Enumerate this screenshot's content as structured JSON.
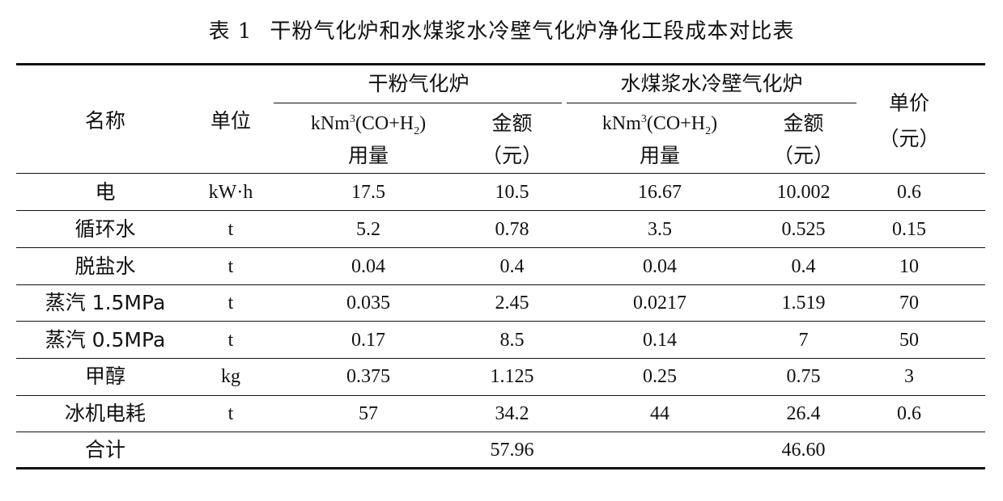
{
  "caption": {
    "number": "表 1",
    "title": "干粉气化炉和水煤浆水冷壁气化炉净化工段成本对比表"
  },
  "header": {
    "name": "名称",
    "unit": "单位",
    "group1": "干粉气化炉",
    "group2": "水煤浆水冷壁气化炉",
    "price_line1": "单价",
    "price_line2": "（元）",
    "usage_prefix": "kNm",
    "usage_sup": "3",
    "usage_mid": "(CO+H",
    "usage_sub": "2",
    "usage_suffix": ")",
    "usage_line2": "用量",
    "amount_line1": "金额",
    "amount_line2": "（元）"
  },
  "rows": [
    {
      "name": "电",
      "unit": "kW·h",
      "dry_usage": "17.5",
      "dry_amount": "10.5",
      "slurry_usage": "16.67",
      "slurry_amount": "10.002",
      "price": "0.6"
    },
    {
      "name": "循环水",
      "unit": "t",
      "dry_usage": "5.2",
      "dry_amount": "0.78",
      "slurry_usage": "3.5",
      "slurry_amount": "0.525",
      "price": "0.15"
    },
    {
      "name": "脱盐水",
      "unit": "t",
      "dry_usage": "0.04",
      "dry_amount": "0.4",
      "slurry_usage": "0.04",
      "slurry_amount": "0.4",
      "price": "10"
    },
    {
      "name": "蒸汽 1.5MPa",
      "unit": "t",
      "dry_usage": "0.035",
      "dry_amount": "2.45",
      "slurry_usage": "0.0217",
      "slurry_amount": "1.519",
      "price": "70"
    },
    {
      "name": "蒸汽 0.5MPa",
      "unit": "t",
      "dry_usage": "0.17",
      "dry_amount": "8.5",
      "slurry_usage": "0.14",
      "slurry_amount": "7",
      "price": "50"
    },
    {
      "name": "甲醇",
      "unit": "kg",
      "dry_usage": "0.375",
      "dry_amount": "1.125",
      "slurry_usage": "0.25",
      "slurry_amount": "0.75",
      "price": "3"
    },
    {
      "name": "冰机电耗",
      "unit": "t",
      "dry_usage": "57",
      "dry_amount": "34.2",
      "slurry_usage": "44",
      "slurry_amount": "26.4",
      "price": "0.6"
    }
  ],
  "total": {
    "name": "合计",
    "dry_amount": "57.96",
    "slurry_amount": "46.60"
  }
}
